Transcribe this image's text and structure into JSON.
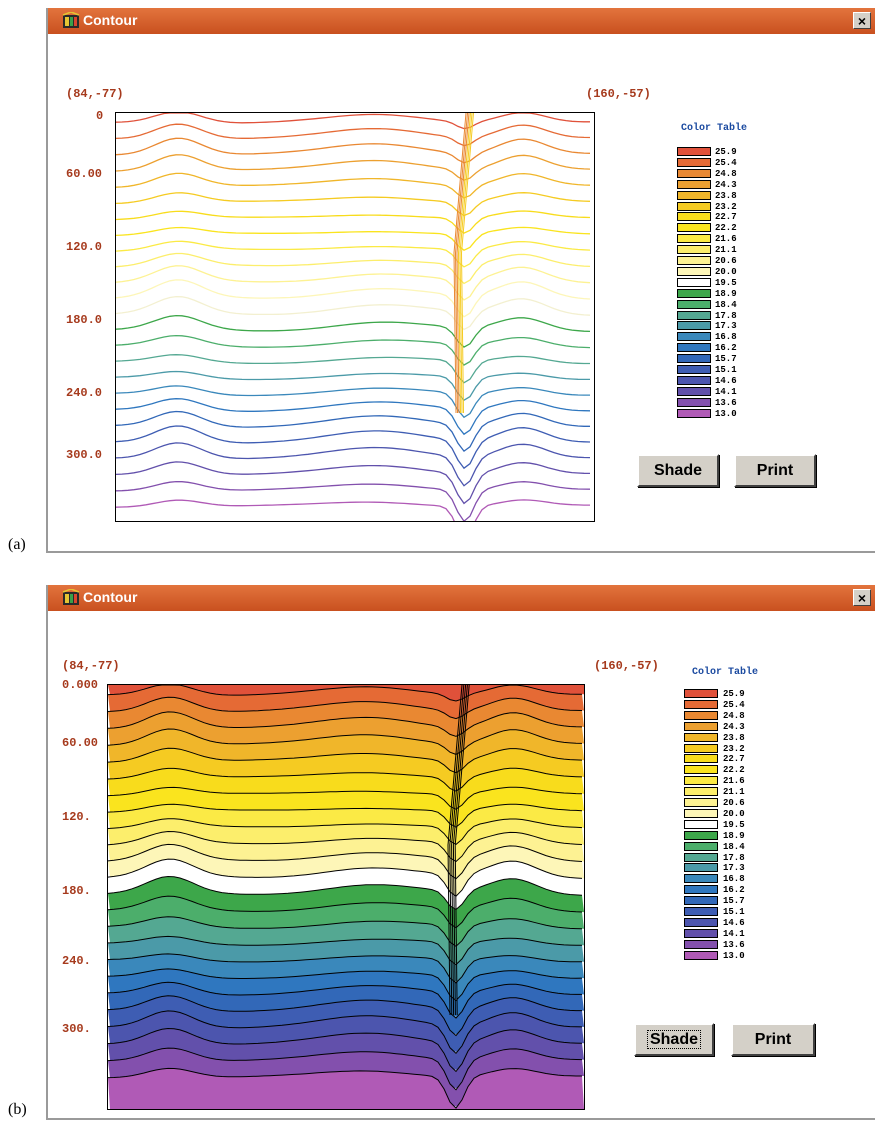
{
  "panels": [
    {
      "label": "(a)",
      "window_title": "Contour",
      "close_glyph": "×",
      "coord_left": "(84,-77)",
      "coord_right": "(160,-57)",
      "y_labels": [
        "0",
        "60.00",
        "120.0",
        "180.0",
        "240.0",
        "300.0"
      ],
      "mode": "lines",
      "color_table_title": "Color Table",
      "shade_label": "Shade",
      "print_label": "Print"
    },
    {
      "label": "(b)",
      "window_title": "Contour",
      "close_glyph": "×",
      "coord_left": "(84,-77)",
      "coord_right": "(160,-57)",
      "y_labels": [
        "0.000",
        "60.00",
        "120.",
        "180.",
        "240.",
        "300."
      ],
      "mode": "filled",
      "color_table_title": "Color Table",
      "shade_label": "Shade",
      "print_label": "Print"
    }
  ],
  "legend": {
    "values": [
      "25.9",
      "25.4",
      "24.8",
      "24.3",
      "23.8",
      "23.2",
      "22.7",
      "22.2",
      "21.6",
      "21.1",
      "20.6",
      "20.0",
      "19.5",
      "18.9",
      "18.4",
      "17.8",
      "17.3",
      "16.8",
      "16.2",
      "15.7",
      "15.1",
      "14.6",
      "14.1",
      "13.6",
      "13.0"
    ],
    "colors": [
      "#e0513a",
      "#e56a35",
      "#e98832",
      "#eca030",
      "#f0b62a",
      "#f5cb22",
      "#f8dc1c",
      "#fae41e",
      "#fbea45",
      "#fcee6c",
      "#fdf293",
      "#fdf6b8",
      "#ffffff",
      "#3da74a",
      "#4cae6b",
      "#54a892",
      "#4b9aa8",
      "#3a88bb",
      "#2f77bf",
      "#3268b8",
      "#3e5db3",
      "#4c55ae",
      "#6250ab",
      "#8350ad",
      "#b05ab6"
    ]
  },
  "icons": {
    "app": "contour-app-icon",
    "close": "close-icon"
  }
}
